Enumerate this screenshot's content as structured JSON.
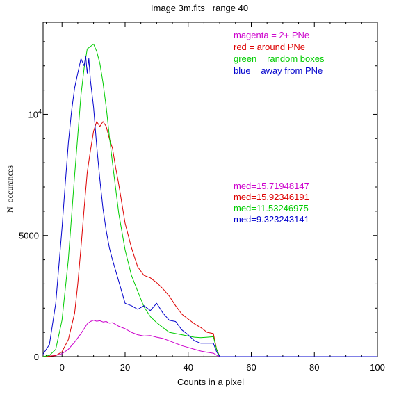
{
  "chart_data": {
    "type": "line",
    "title": "Image 3m.fits   range 40",
    "xlabel": "Counts in a pixel",
    "ylabel": "N  occurances",
    "xlim": [
      -6,
      100
    ],
    "ylim": [
      0,
      13800
    ],
    "x_ticks": [
      {
        "value": 0,
        "label": "0"
      },
      {
        "value": 20,
        "label": "20"
      },
      {
        "value": 40,
        "label": "40"
      },
      {
        "value": 60,
        "label": "60"
      },
      {
        "value": 80,
        "label": "80"
      },
      {
        "value": 100,
        "label": "100"
      }
    ],
    "y_ticks": [
      {
        "value": 0,
        "label": "0"
      },
      {
        "value": 5000,
        "label": "5000"
      },
      {
        "value": 10000,
        "label": "10",
        "exponent": "4"
      }
    ],
    "grid": false,
    "legend": [
      {
        "text": "magenta = 2+ PNe",
        "color": "#cc00cc"
      },
      {
        "text": "red = around PNe",
        "color": "#dd0000"
      },
      {
        "text": "green = random boxes",
        "color": "#00cc00"
      },
      {
        "text": "blue = away from PNe",
        "color": "#0000cc"
      }
    ],
    "annotations": [
      {
        "text": "med=15.71948147",
        "color": "#cc00cc"
      },
      {
        "text": "med=15.92346191",
        "color": "#dd0000"
      },
      {
        "text": "med=11.53246975",
        "color": "#00cc00"
      },
      {
        "text": "med=9.323243141",
        "color": "#0000cc"
      }
    ],
    "series": [
      {
        "color": "#cc00cc",
        "x": [
          -6,
          -4,
          -2,
          0,
          2,
          4,
          6,
          7,
          8,
          9,
          10,
          11,
          12,
          13,
          14,
          15,
          16,
          18,
          20,
          22,
          24,
          26,
          28,
          30,
          32,
          34,
          36,
          38,
          40,
          42,
          44,
          46,
          48,
          49,
          50,
          60,
          80,
          100
        ],
        "y": [
          0,
          20,
          50,
          120,
          300,
          600,
          950,
          1150,
          1350,
          1450,
          1500,
          1460,
          1480,
          1430,
          1450,
          1380,
          1400,
          1250,
          1150,
          1000,
          900,
          850,
          870,
          800,
          750,
          650,
          550,
          450,
          380,
          300,
          230,
          180,
          140,
          60,
          0,
          0,
          0,
          0
        ]
      },
      {
        "color": "#dd0000",
        "x": [
          -6,
          -2,
          0,
          2,
          4,
          5,
          6,
          7,
          8,
          9,
          10,
          11,
          12,
          13,
          14,
          15,
          16,
          17,
          18,
          20,
          22,
          24,
          26,
          28,
          30,
          32,
          34,
          36,
          38,
          40,
          42,
          44,
          46,
          48,
          49,
          50,
          60,
          80,
          100
        ],
        "y": [
          0,
          40,
          200,
          700,
          1800,
          3000,
          4500,
          6100,
          7600,
          8500,
          9300,
          9700,
          9500,
          9700,
          9500,
          9000,
          8600,
          7800,
          7100,
          5500,
          4500,
          3700,
          3350,
          3250,
          3050,
          2800,
          2500,
          2100,
          1750,
          1550,
          1350,
          1200,
          1000,
          950,
          300,
          0,
          0,
          0,
          0
        ]
      },
      {
        "color": "#00cc00",
        "x": [
          -6,
          -4,
          -2,
          0,
          2,
          4,
          6,
          7,
          8,
          9,
          10,
          11,
          12,
          13,
          14,
          15,
          16,
          18,
          20,
          22,
          24,
          26,
          28,
          30,
          32,
          34,
          36,
          38,
          40,
          42,
          44,
          46,
          48,
          49,
          50,
          60,
          80,
          100
        ],
        "y": [
          0,
          50,
          300,
          1500,
          4000,
          7500,
          10800,
          11900,
          12700,
          12800,
          12900,
          12600,
          12100,
          11300,
          10300,
          9100,
          8000,
          5900,
          4400,
          3350,
          2700,
          2050,
          1650,
          1400,
          1200,
          1000,
          950,
          900,
          850,
          800,
          780,
          800,
          820,
          300,
          0,
          0,
          0,
          0
        ]
      },
      {
        "color": "#0000cc",
        "x": [
          -6,
          -4,
          -2,
          0,
          1,
          2,
          3,
          4,
          5,
          6,
          7,
          7.5,
          8,
          8.5,
          9,
          10,
          11,
          12,
          13,
          14,
          15,
          16,
          18,
          20,
          22,
          24,
          26,
          28,
          30,
          32,
          34,
          36,
          38,
          40,
          42,
          44,
          46,
          48,
          49,
          50,
          60,
          80,
          100
        ],
        "y": [
          100,
          500,
          2200,
          5300,
          7100,
          8800,
          10100,
          11100,
          11700,
          12300,
          12000,
          12400,
          11700,
          12300,
          11400,
          10300,
          8700,
          7300,
          6100,
          5200,
          4500,
          4000,
          3100,
          2200,
          2100,
          1950,
          2100,
          1900,
          2200,
          1800,
          1500,
          1450,
          1100,
          900,
          650,
          550,
          550,
          550,
          200,
          0,
          0,
          0,
          0
        ]
      }
    ]
  }
}
